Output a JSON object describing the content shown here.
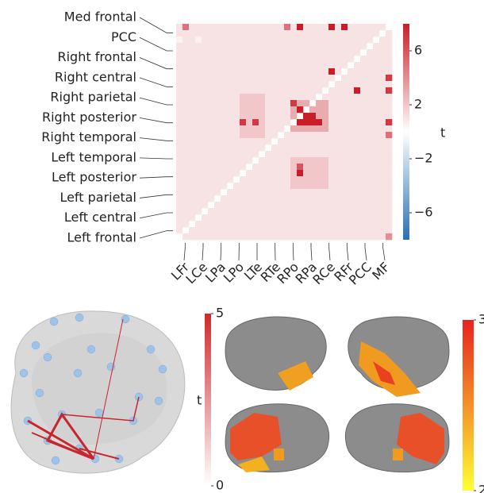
{
  "chart_data": [
    {
      "type": "heatmap",
      "row_labels": [
        "Med frontal",
        "PCC",
        "Right frontal",
        "Right central",
        "Right parietal",
        "Right posterior",
        "Right temporal",
        "Left temporal",
        "Left posterior",
        "Left parietal",
        "Left central",
        "Left frontal"
      ],
      "col_labels": [
        "LFr",
        "LCe",
        "LPa",
        "LPo",
        "LTe",
        "RTe",
        "RPo",
        "RPa",
        "RCe",
        "RFr",
        "PCC",
        "MF"
      ],
      "values": [
        [
          1,
          5,
          1,
          1,
          1,
          1,
          1,
          1,
          1,
          1,
          1,
          1,
          1,
          1,
          1,
          1,
          1,
          5,
          1,
          8,
          1,
          1,
          1,
          1,
          8,
          1,
          8,
          1,
          1,
          1,
          1,
          1,
          1,
          null
        ],
        [
          1,
          1,
          1,
          1,
          1,
          1,
          1,
          1,
          1,
          1,
          1,
          1,
          1,
          1,
          1,
          1,
          1,
          1,
          1,
          1,
          1,
          1,
          1,
          1,
          1,
          1,
          1,
          1,
          1,
          1,
          1,
          1,
          null,
          1
        ],
        [
          0.5,
          1,
          1,
          0.5,
          1,
          1,
          1,
          1,
          1,
          1,
          1,
          1,
          1,
          1,
          1,
          1,
          1,
          1,
          1,
          1,
          1,
          1,
          1,
          1,
          1,
          1,
          1,
          1,
          1,
          1,
          1,
          null,
          1,
          1
        ],
        [
          1,
          1,
          1,
          1,
          1,
          1,
          1,
          1,
          1,
          1,
          1,
          1,
          1,
          1,
          1,
          1,
          1,
          1,
          1,
          1,
          1,
          1,
          1,
          1,
          1,
          1,
          1,
          1,
          1,
          1,
          null,
          1,
          1,
          1
        ],
        [
          1,
          1,
          1,
          1,
          1,
          1,
          1,
          1,
          1,
          1,
          1,
          1,
          1,
          1,
          1,
          1,
          1,
          1,
          1,
          1,
          1,
          1,
          1,
          1,
          1,
          1,
          1,
          1,
          1,
          null,
          1,
          1,
          1,
          1
        ],
        [
          1,
          1,
          1,
          1,
          1,
          1,
          1,
          1,
          1,
          1,
          1,
          1,
          1,
          1,
          1,
          1,
          1,
          1,
          1,
          1,
          1,
          1,
          1,
          1,
          1,
          1,
          1,
          1,
          null,
          1,
          1,
          1,
          1,
          1
        ],
        [
          1,
          1,
          1,
          1,
          1,
          1,
          1,
          1,
          1,
          1,
          1,
          1,
          1,
          1,
          1,
          1,
          1,
          1,
          1,
          1,
          1,
          1,
          1,
          1,
          1,
          1,
          1,
          null,
          1,
          1,
          1,
          1,
          1,
          1
        ],
        [
          1,
          1,
          1,
          1,
          1,
          1,
          1,
          1,
          1,
          1,
          1,
          1,
          1,
          1,
          1,
          1,
          1,
          1,
          1,
          1,
          1,
          1,
          1,
          1,
          8,
          1,
          null,
          1,
          1,
          1,
          1,
          1,
          1,
          1
        ],
        [
          1,
          1,
          1,
          1,
          1,
          1,
          1,
          1,
          1,
          1,
          1,
          1,
          1,
          1,
          1,
          1,
          1,
          1,
          1,
          1,
          1,
          1,
          1,
          1,
          1,
          null,
          1,
          1,
          1,
          1,
          1,
          1,
          1,
          7
        ],
        [
          1,
          1,
          1,
          1,
          1,
          1,
          1,
          1,
          1,
          1,
          1,
          1,
          1,
          1,
          1,
          1,
          1,
          1,
          1,
          1,
          1,
          1,
          1,
          1,
          null,
          1,
          1,
          1,
          1,
          1,
          1,
          1,
          1,
          1
        ],
        [
          1,
          1,
          1,
          1,
          1,
          1,
          1,
          1,
          1,
          1,
          1,
          1,
          1,
          1,
          1,
          1,
          1,
          1,
          1,
          1,
          1,
          1,
          1,
          null,
          1,
          1,
          1,
          1,
          8,
          1,
          1,
          1,
          1,
          7
        ],
        [
          1,
          1,
          1,
          1,
          1,
          1,
          1,
          1,
          1,
          1,
          2,
          2,
          2,
          2,
          1,
          1,
          1,
          1,
          1,
          1,
          1,
          1,
          null,
          1,
          1,
          1,
          1,
          1,
          1,
          1,
          1,
          1,
          1,
          1
        ],
        [
          1,
          1,
          1,
          1,
          1,
          1,
          1,
          1,
          1,
          1,
          2,
          2,
          2,
          2,
          1,
          1,
          1,
          1,
          7,
          3,
          3,
          null,
          3,
          3,
          1,
          1,
          1,
          1,
          1,
          1,
          1,
          1,
          1,
          1
        ],
        [
          1,
          1,
          1,
          1,
          1,
          1,
          1,
          1,
          1,
          1,
          2,
          2,
          2,
          2,
          1,
          1,
          1,
          1,
          3,
          8,
          null,
          3,
          3,
          3,
          1,
          1,
          1,
          1,
          1,
          1,
          1,
          1,
          1,
          1
        ],
        [
          1,
          1,
          1,
          1,
          1,
          1,
          1,
          1,
          1,
          1,
          2,
          2,
          2,
          2,
          1,
          1,
          1,
          1,
          3,
          null,
          8,
          8,
          3,
          3,
          1,
          1,
          1,
          1,
          1,
          1,
          1,
          1,
          1,
          1
        ],
        [
          1,
          1,
          1,
          1,
          1,
          1,
          1,
          1,
          1,
          1,
          7,
          2,
          7,
          2,
          1,
          1,
          1,
          1,
          null,
          8,
          8,
          8,
          8,
          3,
          1,
          1,
          1,
          1,
          1,
          1,
          1,
          1,
          1,
          7
        ],
        [
          1,
          1,
          1,
          1,
          1,
          1,
          1,
          1,
          1,
          1,
          2,
          2,
          2,
          2,
          1,
          1,
          1,
          null,
          3,
          3,
          3,
          3,
          3,
          3,
          1,
          1,
          1,
          1,
          1,
          1,
          1,
          1,
          1,
          1
        ],
        [
          1,
          1,
          1,
          1,
          1,
          1,
          1,
          1,
          1,
          1,
          2,
          2,
          2,
          2,
          1,
          1,
          null,
          1,
          1,
          1,
          1,
          1,
          1,
          1,
          1,
          1,
          1,
          1,
          1,
          1,
          1,
          1,
          1,
          5
        ],
        [
          1,
          1,
          1,
          1,
          1,
          1,
          1,
          1,
          1,
          1,
          1,
          1,
          1,
          1,
          1,
          null,
          1,
          1,
          1,
          1,
          1,
          1,
          1,
          1,
          1,
          1,
          1,
          1,
          1,
          1,
          1,
          1,
          1,
          1
        ],
        [
          1,
          1,
          1,
          1,
          1,
          1,
          1,
          1,
          1,
          1,
          1,
          1,
          1,
          1,
          null,
          1,
          1,
          1,
          1,
          1,
          1,
          1,
          1,
          1,
          1,
          1,
          1,
          1,
          1,
          1,
          1,
          1,
          1,
          1
        ],
        [
          1,
          1,
          1,
          1,
          1,
          1,
          1,
          1,
          1,
          1,
          1,
          1,
          1,
          null,
          1,
          1,
          1,
          1,
          1,
          1,
          1,
          1,
          1,
          1,
          1,
          1,
          1,
          1,
          1,
          1,
          1,
          1,
          1,
          1
        ],
        [
          1,
          1,
          1,
          1,
          1,
          1,
          1,
          1,
          1,
          1,
          1,
          1,
          null,
          1,
          1,
          1,
          1,
          1,
          2,
          2,
          2,
          2,
          2,
          2,
          1,
          1,
          1,
          1,
          1,
          1,
          1,
          1,
          1,
          1
        ],
        [
          1,
          1,
          1,
          1,
          1,
          1,
          1,
          1,
          1,
          1,
          1,
          null,
          1,
          1,
          1,
          1,
          1,
          1,
          2,
          6,
          2,
          2,
          2,
          2,
          1,
          1,
          1,
          1,
          1,
          1,
          1,
          1,
          1,
          1
        ],
        [
          1,
          1,
          1,
          1,
          1,
          1,
          1,
          1,
          1,
          1,
          null,
          1,
          1,
          1,
          1,
          1,
          1,
          1,
          2,
          8,
          2,
          2,
          2,
          2,
          1,
          1,
          1,
          1,
          1,
          1,
          1,
          1,
          1,
          1
        ],
        [
          1,
          1,
          1,
          1,
          1,
          1,
          1,
          1,
          1,
          null,
          1,
          1,
          1,
          1,
          1,
          1,
          1,
          1,
          2,
          2,
          2,
          2,
          2,
          2,
          1,
          1,
          1,
          1,
          1,
          1,
          1,
          1,
          1,
          1
        ],
        [
          1,
          1,
          1,
          1,
          1,
          1,
          1,
          1,
          null,
          1,
          1,
          1,
          1,
          1,
          1,
          1,
          1,
          1,
          2,
          2,
          2,
          2,
          2,
          2,
          1,
          1,
          1,
          1,
          1,
          1,
          1,
          1,
          1,
          1
        ],
        [
          1,
          1,
          1,
          1,
          1,
          1,
          1,
          null,
          1,
          1,
          1,
          1,
          1,
          1,
          1,
          1,
          1,
          1,
          1,
          1,
          1,
          1,
          1,
          1,
          1,
          1,
          1,
          1,
          1,
          1,
          1,
          1,
          1,
          1
        ],
        [
          1,
          1,
          1,
          1,
          1,
          1,
          null,
          1,
          1,
          1,
          1,
          1,
          1,
          1,
          1,
          1,
          1,
          1,
          1,
          1,
          1,
          1,
          1,
          1,
          1,
          1,
          1,
          1,
          1,
          1,
          1,
          1,
          1,
          1
        ],
        [
          1,
          1,
          1,
          1,
          1,
          null,
          1,
          1,
          1,
          1,
          1,
          1,
          1,
          1,
          1,
          1,
          1,
          1,
          1,
          1,
          1,
          1,
          1,
          1,
          1,
          1,
          1,
          1,
          1,
          1,
          1,
          1,
          1,
          1
        ],
        [
          1,
          1,
          1,
          1,
          null,
          1,
          1,
          1,
          1,
          1,
          1,
          1,
          1,
          1,
          1,
          1,
          1,
          1,
          1,
          1,
          1,
          1,
          1,
          1,
          1,
          1,
          1,
          1,
          1,
          1,
          1,
          1,
          1,
          1
        ],
        [
          1,
          1,
          1,
          null,
          1,
          1,
          1,
          1,
          1,
          1,
          1,
          1,
          1,
          1,
          1,
          1,
          1,
          1,
          1,
          1,
          1,
          1,
          1,
          1,
          1,
          1,
          1,
          1,
          1,
          1,
          1,
          1,
          1,
          1
        ],
        [
          1,
          1,
          null,
          1,
          1,
          1,
          1,
          1,
          1,
          1,
          1,
          1,
          1,
          1,
          1,
          1,
          1,
          1,
          1,
          1,
          1,
          1,
          1,
          1,
          1,
          1,
          1,
          1,
          1,
          1,
          1,
          1,
          1,
          1
        ],
        [
          1,
          null,
          1,
          1,
          1,
          1,
          1,
          1,
          1,
          1,
          1,
          1,
          1,
          1,
          1,
          1,
          1,
          1,
          1,
          1,
          1,
          1,
          1,
          1,
          1,
          1,
          1,
          1,
          1,
          1,
          1,
          1,
          1,
          1
        ],
        [
          null,
          1,
          1,
          1,
          1,
          1,
          1,
          1,
          1,
          1,
          1,
          1,
          1,
          1,
          1,
          1,
          1,
          1,
          1,
          1,
          1,
          1,
          1,
          1,
          1,
          1,
          1,
          1,
          1,
          1,
          1,
          1,
          1,
          4
        ]
      ],
      "zlim": [
        -8,
        8
      ],
      "zticks": [
        {
          "value": -6,
          "label": "−6"
        },
        {
          "value": -2,
          "label": "−2"
        },
        2,
        6
      ],
      "colorbar_label": "t",
      "colormap": [
        "#2a6fb0",
        "#ffffff",
        "#c81e2a"
      ]
    },
    {
      "type": "network",
      "zlim": [
        0,
        5
      ],
      "zticks": [
        0,
        5
      ],
      "colorbar_label": "t",
      "colormap": [
        "#ffffff",
        "#cf2a2e"
      ]
    },
    {
      "type": "surface",
      "zlim": [
        2,
        3
      ],
      "zticks": [
        2,
        3
      ],
      "colormap": [
        "#ffff33",
        "#e8231e"
      ]
    }
  ]
}
